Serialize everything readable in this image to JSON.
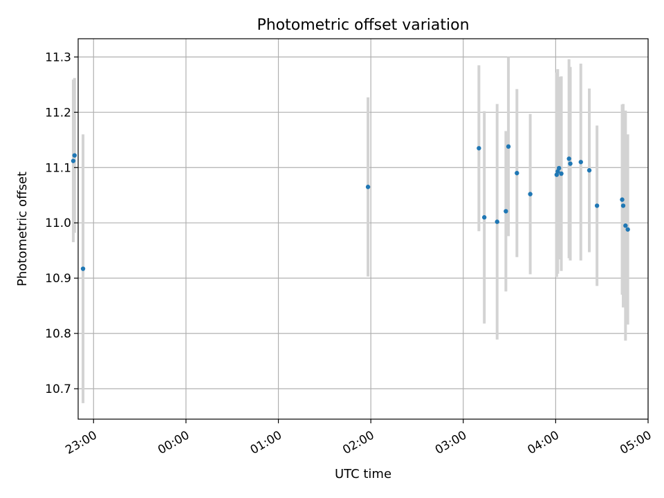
{
  "chart_data": {
    "type": "scatter",
    "title": "Photometric offset variation",
    "xlabel": "UTC time",
    "ylabel": "Photometric offset",
    "xlim": [
      "22:50",
      "05:00"
    ],
    "ylim": [
      10.645,
      11.333
    ],
    "x_ticks": [
      "23:00",
      "00:00",
      "01:00",
      "02:00",
      "03:00",
      "04:00",
      "05:00"
    ],
    "y_ticks": [
      10.7,
      10.8,
      10.9,
      11.0,
      11.1,
      11.2,
      11.3
    ],
    "grid": true,
    "errorbar_color": "#d3d3d3",
    "point_color": "#1f77b4",
    "points": [
      {
        "x": "22:46:50",
        "y": 11.112,
        "err": 0.147
      },
      {
        "x": "22:47:40",
        "y": 11.122,
        "err": 0.14
      },
      {
        "x": "22:53:10",
        "y": 10.917,
        "err": 0.243
      },
      {
        "x": "01:58:10",
        "y": 11.065,
        "err": 0.162
      },
      {
        "x": "03:10:10",
        "y": 11.135,
        "err": 0.15
      },
      {
        "x": "03:13:40",
        "y": 11.01,
        "err": 0.192
      },
      {
        "x": "03:22:00",
        "y": 11.002,
        "err": 0.213
      },
      {
        "x": "03:27:40",
        "y": 11.021,
        "err": 0.145
      },
      {
        "x": "03:29:20",
        "y": 11.138,
        "err": 0.162
      },
      {
        "x": "03:34:50",
        "y": 11.09,
        "err": 0.152
      },
      {
        "x": "03:43:30",
        "y": 11.052,
        "err": 0.145
      },
      {
        "x": "04:00:40",
        "y": 11.087,
        "err": 0.185
      },
      {
        "x": "04:01:20",
        "y": 11.093,
        "err": 0.185
      },
      {
        "x": "04:02:10",
        "y": 11.099,
        "err": 0.165
      },
      {
        "x": "04:03:40",
        "y": 11.089,
        "err": 0.176
      },
      {
        "x": "04:08:40",
        "y": 11.116,
        "err": 0.18
      },
      {
        "x": "04:09:30",
        "y": 11.107,
        "err": 0.175
      },
      {
        "x": "04:16:20",
        "y": 11.11,
        "err": 0.178
      },
      {
        "x": "04:21:50",
        "y": 11.095,
        "err": 0.148
      },
      {
        "x": "04:26:50",
        "y": 11.031,
        "err": 0.145
      },
      {
        "x": "04:43:10",
        "y": 11.042,
        "err": 0.172
      },
      {
        "x": "04:43:50",
        "y": 11.031,
        "err": 0.184
      },
      {
        "x": "04:45:20",
        "y": 10.995,
        "err": 0.208
      },
      {
        "x": "04:46:50",
        "y": 10.988,
        "err": 0.172
      }
    ]
  }
}
